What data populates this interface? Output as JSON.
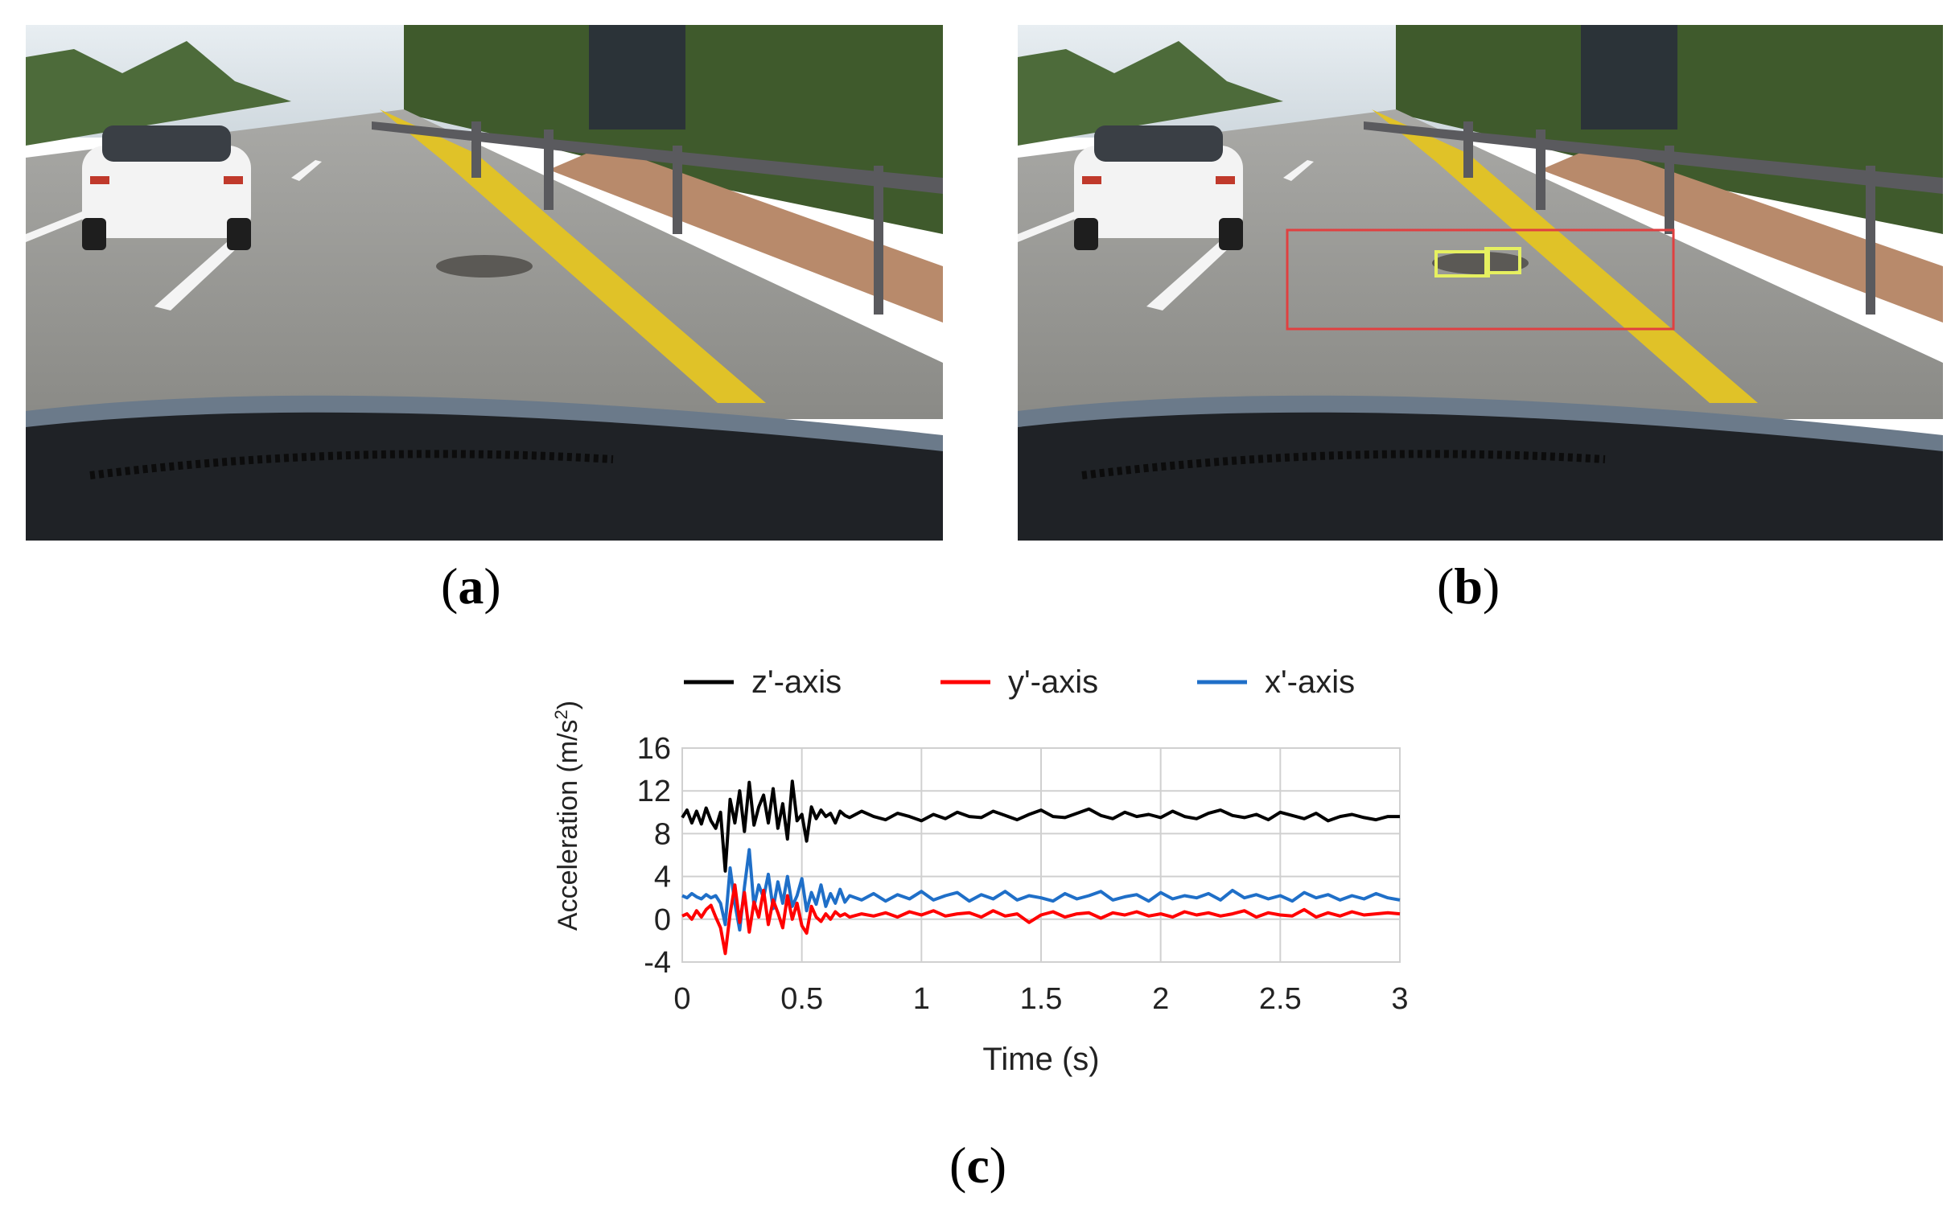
{
  "panels": [
    {
      "id": "a",
      "label": "a",
      "image": "dashcam-road-view"
    },
    {
      "id": "b",
      "label": "b",
      "image": "dashcam-road-view-with-detection-boxes"
    },
    {
      "id": "c",
      "label": "c"
    }
  ],
  "colors": {
    "z": "#000000",
    "y": "#ff0000",
    "x": "#1f6fc8",
    "roi_box": "#e04040",
    "detection_box": "#e6f060"
  },
  "chart_data": {
    "type": "line",
    "title": "",
    "xlabel": "Time (s)",
    "ylabel": "Acceleration (m/s²)",
    "ylabel_main": "Acceleration (m/s",
    "ylabel_sup": "2",
    "ylabel_close": ")",
    "xlim": [
      0,
      3
    ],
    "ylim": [
      -4,
      16
    ],
    "xticks": [
      0,
      0.5,
      1,
      1.5,
      2,
      2.5,
      3
    ],
    "xtick_labels": [
      "0",
      "0.5",
      "1",
      "1.5",
      "2",
      "2.5",
      "3"
    ],
    "yticks": [
      -4,
      0,
      4,
      8,
      12,
      16
    ],
    "ytick_labels": [
      "-4",
      "0",
      "4",
      "8",
      "12",
      "16"
    ],
    "grid": true,
    "legend_position": "top",
    "series": [
      {
        "name": "z'-axis",
        "color": "#000000",
        "x": [
          0,
          0.02,
          0.04,
          0.06,
          0.08,
          0.1,
          0.12,
          0.14,
          0.16,
          0.18,
          0.2,
          0.22,
          0.24,
          0.26,
          0.28,
          0.3,
          0.32,
          0.34,
          0.36,
          0.38,
          0.4,
          0.42,
          0.44,
          0.46,
          0.48,
          0.5,
          0.52,
          0.54,
          0.56,
          0.58,
          0.6,
          0.62,
          0.64,
          0.66,
          0.68,
          0.7,
          0.75,
          0.8,
          0.85,
          0.9,
          0.95,
          1.0,
          1.05,
          1.1,
          1.15,
          1.2,
          1.25,
          1.3,
          1.35,
          1.4,
          1.45,
          1.5,
          1.55,
          1.6,
          1.65,
          1.7,
          1.75,
          1.8,
          1.85,
          1.9,
          1.95,
          2.0,
          2.05,
          2.1,
          2.15,
          2.2,
          2.25,
          2.3,
          2.35,
          2.4,
          2.45,
          2.5,
          2.55,
          2.6,
          2.65,
          2.7,
          2.75,
          2.8,
          2.85,
          2.9,
          2.95,
          3.0
        ],
        "y": [
          9.5,
          10.2,
          9.0,
          10.1,
          8.9,
          10.4,
          9.2,
          8.5,
          10.0,
          4.5,
          11.2,
          9.0,
          12.0,
          8.2,
          12.8,
          8.8,
          10.5,
          11.6,
          9.0,
          12.2,
          8.5,
          10.8,
          7.5,
          12.9,
          9.2,
          9.8,
          7.3,
          10.5,
          9.4,
          10.2,
          9.6,
          9.9,
          9.0,
          10.1,
          9.7,
          9.5,
          10.1,
          9.6,
          9.3,
          9.9,
          9.6,
          9.2,
          9.8,
          9.4,
          10.0,
          9.6,
          9.5,
          10.1,
          9.7,
          9.3,
          9.8,
          10.2,
          9.6,
          9.5,
          9.9,
          10.3,
          9.7,
          9.4,
          10.0,
          9.6,
          9.8,
          9.5,
          10.1,
          9.6,
          9.4,
          9.9,
          10.2,
          9.7,
          9.5,
          9.8,
          9.3,
          10.0,
          9.7,
          9.4,
          9.9,
          9.2,
          9.6,
          9.8,
          9.5,
          9.3,
          9.6,
          9.6
        ]
      },
      {
        "name": "y'-axis",
        "color": "#ff0000",
        "x": [
          0,
          0.02,
          0.04,
          0.06,
          0.08,
          0.1,
          0.12,
          0.14,
          0.16,
          0.18,
          0.2,
          0.22,
          0.24,
          0.26,
          0.28,
          0.3,
          0.32,
          0.34,
          0.36,
          0.38,
          0.4,
          0.42,
          0.44,
          0.46,
          0.48,
          0.5,
          0.52,
          0.54,
          0.56,
          0.58,
          0.6,
          0.62,
          0.64,
          0.66,
          0.68,
          0.7,
          0.75,
          0.8,
          0.85,
          0.9,
          0.95,
          1.0,
          1.05,
          1.1,
          1.15,
          1.2,
          1.25,
          1.3,
          1.35,
          1.4,
          1.45,
          1.5,
          1.55,
          1.6,
          1.65,
          1.7,
          1.75,
          1.8,
          1.85,
          1.9,
          1.95,
          2.0,
          2.05,
          2.1,
          2.15,
          2.2,
          2.25,
          2.3,
          2.35,
          2.4,
          2.45,
          2.5,
          2.55,
          2.6,
          2.65,
          2.7,
          2.75,
          2.8,
          2.85,
          2.9,
          2.95,
          3.0
        ],
        "y": [
          0.3,
          0.5,
          0.0,
          0.8,
          0.2,
          0.9,
          1.3,
          0.2,
          -0.8,
          -3.2,
          0.5,
          3.2,
          -0.3,
          2.5,
          -1.2,
          1.6,
          0.2,
          2.7,
          -0.5,
          1.8,
          0.6,
          -0.8,
          2.2,
          0.0,
          1.5,
          -0.6,
          -1.3,
          1.2,
          0.2,
          -0.2,
          0.5,
          0.0,
          0.7,
          0.3,
          0.5,
          0.2,
          0.5,
          0.3,
          0.6,
          0.2,
          0.7,
          0.4,
          0.8,
          0.3,
          0.5,
          0.6,
          0.2,
          0.8,
          0.3,
          0.5,
          -0.3,
          0.4,
          0.7,
          0.2,
          0.5,
          0.6,
          0.1,
          0.6,
          0.4,
          0.7,
          0.3,
          0.5,
          0.2,
          0.7,
          0.4,
          0.6,
          0.3,
          0.5,
          0.8,
          0.2,
          0.6,
          0.4,
          0.3,
          0.9,
          0.2,
          0.6,
          0.3,
          0.7,
          0.4,
          0.5,
          0.6,
          0.5
        ]
      },
      {
        "name": "x'-axis",
        "color": "#1f6fc8",
        "x": [
          0,
          0.02,
          0.04,
          0.06,
          0.08,
          0.1,
          0.12,
          0.14,
          0.16,
          0.18,
          0.2,
          0.22,
          0.24,
          0.26,
          0.28,
          0.3,
          0.32,
          0.34,
          0.36,
          0.38,
          0.4,
          0.42,
          0.44,
          0.46,
          0.48,
          0.5,
          0.52,
          0.54,
          0.56,
          0.58,
          0.6,
          0.62,
          0.64,
          0.66,
          0.68,
          0.7,
          0.75,
          0.8,
          0.85,
          0.9,
          0.95,
          1.0,
          1.05,
          1.1,
          1.15,
          1.2,
          1.25,
          1.3,
          1.35,
          1.4,
          1.45,
          1.5,
          1.55,
          1.6,
          1.65,
          1.7,
          1.75,
          1.8,
          1.85,
          1.9,
          1.95,
          2.0,
          2.05,
          2.1,
          2.15,
          2.2,
          2.25,
          2.3,
          2.35,
          2.4,
          2.45,
          2.5,
          2.55,
          2.6,
          2.65,
          2.7,
          2.75,
          2.8,
          2.85,
          2.9,
          2.95,
          3.0
        ],
        "y": [
          2.2,
          2.0,
          2.4,
          2.1,
          1.9,
          2.3,
          2.0,
          2.2,
          1.5,
          -0.5,
          4.8,
          1.5,
          -1.0,
          3.0,
          6.5,
          1.2,
          3.2,
          2.0,
          4.2,
          1.0,
          3.5,
          1.5,
          4.0,
          1.2,
          2.2,
          3.8,
          0.8,
          2.5,
          1.4,
          3.2,
          1.2,
          2.4,
          1.5,
          2.8,
          1.6,
          2.2,
          1.8,
          2.4,
          1.7,
          2.3,
          1.9,
          2.6,
          1.8,
          2.2,
          2.5,
          1.7,
          2.3,
          1.9,
          2.6,
          1.8,
          2.2,
          2.0,
          1.7,
          2.4,
          1.9,
          2.2,
          2.6,
          1.8,
          2.1,
          2.3,
          1.7,
          2.5,
          1.9,
          2.2,
          2.0,
          2.4,
          1.8,
          2.7,
          2.0,
          2.3,
          1.9,
          2.2,
          1.7,
          2.5,
          2.0,
          2.3,
          1.8,
          2.2,
          1.9,
          2.4,
          2.0,
          1.8
        ]
      }
    ]
  }
}
